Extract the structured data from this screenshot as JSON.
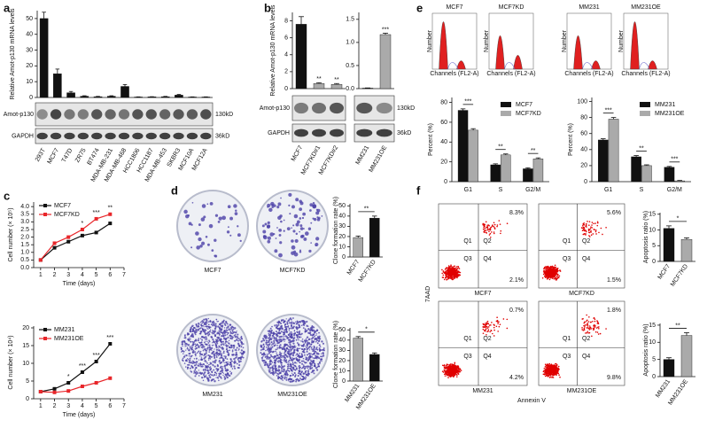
{
  "panel_labels": [
    "a",
    "b",
    "c",
    "d",
    "e",
    "f"
  ],
  "blot_a": {
    "rows": [
      "Amot-p130",
      "GAPDH"
    ],
    "sizes": [
      "130kD",
      "36kD"
    ]
  },
  "blot_b": {
    "rows": [
      "Amot-p130",
      "GAPDH"
    ],
    "sizes": [
      "130kD",
      "36kD"
    ]
  },
  "flow": {
    "samples": [
      "MCF7",
      "MCF7KD",
      "MM231",
      "MM231OE"
    ],
    "x_label": "Channels (FL2-A)",
    "y_label": "Number"
  },
  "colonies": {
    "samples": [
      "MCF7",
      "MCF7KD",
      "MM231",
      "MM231OE"
    ]
  },
  "apoptosis_plots": {
    "samples": [
      "MCF7",
      "MCF7KD",
      "MM231",
      "MM231OE"
    ],
    "quadrants": [
      "Q1",
      "Q2",
      "Q3",
      "Q4"
    ],
    "upper_right": [
      "8.3%",
      "5.6%",
      "0.7%",
      "1.8%"
    ],
    "lower_right": [
      "2.1%",
      "1.5%",
      "4.2%",
      "9.8%"
    ],
    "y_label": "7AAD",
    "x_label": "Annexin V"
  },
  "chart_data": [
    {
      "type": "bar",
      "ylabel": "Relative Amot-p130 mRNA levels",
      "categories": [
        "293T",
        "MCF7",
        "T47D",
        "ZR75",
        "BT474",
        "MDA-MB-231",
        "MDA-MB-468",
        "HCC1806",
        "HCC1187",
        "MDA-MB-453",
        "SKBR3",
        "MCF10A",
        "MCF12A"
      ],
      "values": [
        50,
        15,
        3,
        0.8,
        0.5,
        0.8,
        7,
        0.3,
        0.4,
        0.5,
        1.5,
        0.3,
        0.3
      ],
      "errors": [
        4,
        3,
        0.8,
        0.3,
        0.2,
        0.3,
        1.2,
        0.1,
        0.1,
        0.2,
        0.4,
        0.1,
        0.1
      ],
      "color": "#111111",
      "ylim": [
        0,
        55
      ],
      "yticks": [
        0,
        10,
        20,
        30,
        40,
        50
      ]
    },
    {
      "type": "bar",
      "ylabel": "Relative Amot-p130 mRNA levels",
      "categories": [
        "MCF7",
        "MCF7KD#1",
        "MCF7KD#2"
      ],
      "values": [
        7.6,
        0.6,
        0.5
      ],
      "errors": [
        0.9,
        0.1,
        0.1
      ],
      "colors": [
        "#111111",
        "#aaaaaa",
        "#aaaaaa"
      ],
      "annotations": [
        null,
        "**",
        "**"
      ],
      "ylim": [
        0,
        9
      ],
      "yticks": [
        0,
        2,
        4,
        6,
        8
      ]
    },
    {
      "type": "bar",
      "categories": [
        "MM231",
        "MM231OE"
      ],
      "values": [
        0.01,
        1.17
      ],
      "errors": [
        0.005,
        0.03
      ],
      "colors": [
        "#111111",
        "#aaaaaa"
      ],
      "annotations": [
        null,
        "***"
      ],
      "ylim": [
        0,
        1.65
      ],
      "yticks": [
        {
          "value": 0,
          "label": "0.0"
        },
        {
          "value": 0.5,
          "label": "0.5"
        },
        {
          "value": 1,
          "label": "1.0"
        },
        {
          "value": 1.5,
          "label": "1.5"
        }
      ]
    },
    {
      "type": "grouped_bar",
      "ylabel": "Percent (%)",
      "categories": [
        "G1",
        "S",
        "G2/M"
      ],
      "series": [
        {
          "name": "MCF7",
          "color": "#111111",
          "values": [
            72,
            17,
            13
          ],
          "errors": [
            1.5,
            1,
            1
          ]
        },
        {
          "name": "MCF7KD",
          "color": "#aaaaaa",
          "values": [
            52,
            27,
            23
          ],
          "errors": [
            1.5,
            1,
            1
          ]
        }
      ],
      "annotations": [
        "***",
        "**",
        "**"
      ],
      "ylim": [
        0,
        85
      ],
      "yticks": [
        0,
        20,
        40,
        60,
        80
      ],
      "legend": "upper right"
    },
    {
      "type": "grouped_bar",
      "ylabel": "Percent (%)",
      "categories": [
        "G1",
        "S",
        "G2/M"
      ],
      "series": [
        {
          "name": "MM231",
          "color": "#111111",
          "values": [
            52,
            31,
            18
          ],
          "errors": [
            1.5,
            1.5,
            1
          ]
        },
        {
          "name": "MM231OE",
          "color": "#aaaaaa",
          "values": [
            78,
            20,
            1
          ],
          "errors": [
            2,
            1,
            0.5
          ]
        }
      ],
      "annotations": [
        "***",
        "**",
        "***"
      ],
      "ylim": [
        0,
        105
      ],
      "yticks": [
        0,
        20,
        40,
        60,
        80,
        100
      ],
      "legend": "upper right"
    },
    {
      "type": "line",
      "ylabel": "Cell number (× 10⁵)",
      "xlabel": "Time (days)",
      "x": [
        1,
        2,
        3,
        4,
        5,
        6
      ],
      "series": [
        {
          "name": "MCF7",
          "color": "#111111",
          "values": [
            0.5,
            1.3,
            1.7,
            2.1,
            2.3,
            2.9
          ]
        },
        {
          "name": "MCF7KD",
          "color": "#e8262a",
          "values": [
            0.5,
            1.6,
            2.0,
            2.5,
            3.2,
            3.5
          ]
        }
      ],
      "annotations": [
        null,
        null,
        null,
        "*",
        "***",
        "**"
      ],
      "xlim": [
        0.5,
        7
      ],
      "xticks": [
        1,
        2,
        3,
        4,
        5,
        6,
        7
      ],
      "ylim": [
        0,
        4.3
      ],
      "yticks": [
        {
          "value": 0,
          "label": "0.0"
        },
        {
          "value": 0.5,
          "label": "0.5"
        },
        {
          "value": 1,
          "label": "1.0"
        },
        {
          "value": 1.5,
          "label": "1.5"
        },
        {
          "value": 2,
          "label": "2.0"
        },
        {
          "value": 2.5,
          "label": "2.5"
        },
        {
          "value": 3,
          "label": "3.0"
        },
        {
          "value": 3.5,
          "label": "3.5"
        },
        {
          "value": 4,
          "label": "4.0"
        }
      ],
      "legend": "upper left"
    },
    {
      "type": "line",
      "ylabel": "Cell number (× 10⁴)",
      "xlabel": "Time (days)",
      "x": [
        1,
        2,
        3,
        4,
        5,
        6
      ],
      "series": [
        {
          "name": "MM231",
          "color": "#111111",
          "values": [
            2,
            2.8,
            4.5,
            7.5,
            10.5,
            15.5
          ]
        },
        {
          "name": "MM231OE",
          "color": "#e8262a",
          "values": [
            2,
            1.8,
            2.2,
            3.5,
            4.5,
            5.8
          ]
        }
      ],
      "annotations": [
        null,
        null,
        "*",
        "***",
        "***",
        "***"
      ],
      "xlim": [
        0.5,
        7
      ],
      "xticks": [
        1,
        2,
        3,
        4,
        5,
        6,
        7
      ],
      "ylim": [
        0,
        20.5
      ],
      "yticks": [
        0,
        5,
        10,
        15,
        20
      ],
      "legend": "upper left"
    },
    {
      "type": "bar",
      "ylabel": "Clone formation rate (%)",
      "categories": [
        "MCF7",
        "MCF7KD"
      ],
      "values": [
        19,
        38
      ],
      "errors": [
        1.5,
        2
      ],
      "colors": [
        "#aaaaaa",
        "#111111"
      ],
      "annotation": "**",
      "ylim": [
        0,
        52
      ],
      "yticks": [
        0,
        10,
        20,
        30,
        40,
        50
      ]
    },
    {
      "type": "bar",
      "ylabel": "Clone formation rate (%)",
      "categories": [
        "MM231",
        "MM231OE"
      ],
      "values": [
        42,
        26
      ],
      "errors": [
        1.5,
        1.5
      ],
      "colors": [
        "#aaaaaa",
        "#111111"
      ],
      "annotation": "*",
      "ylim": [
        0,
        52
      ],
      "yticks": [
        0,
        10,
        20,
        30,
        40,
        50
      ]
    },
    {
      "type": "bar",
      "ylabel": "Apoptosis ratio (%)",
      "categories": [
        "MCF7",
        "MCF7KD"
      ],
      "values": [
        10.5,
        7
      ],
      "errors": [
        0.8,
        0.5
      ],
      "colors": [
        "#111111",
        "#aaaaaa"
      ],
      "annotation": "*",
      "ylim": [
        0,
        15.5
      ],
      "yticks": [
        0,
        5,
        10,
        15
      ]
    },
    {
      "type": "bar",
      "ylabel": "Apoptosis ratio (%)",
      "categories": [
        "MM231",
        "MM231OE"
      ],
      "values": [
        5,
        12
      ],
      "errors": [
        0.5,
        0.8
      ],
      "colors": [
        "#111111",
        "#aaaaaa"
      ],
      "annotation": "**",
      "ylim": [
        0,
        15.5
      ],
      "yticks": [
        0,
        5,
        10,
        15
      ]
    }
  ]
}
